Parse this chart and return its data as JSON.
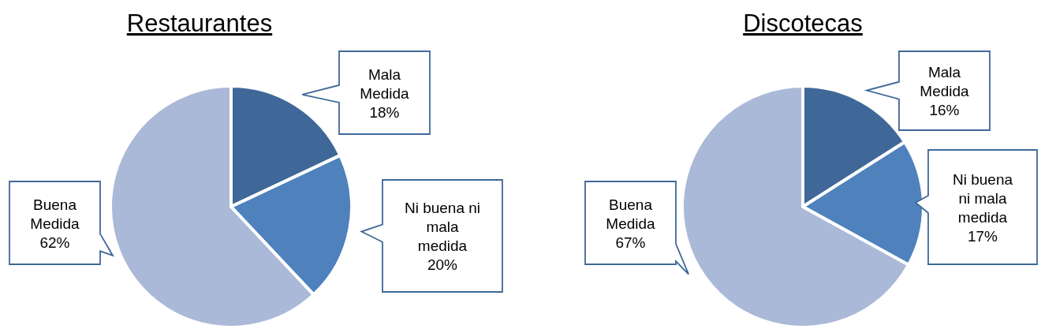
{
  "chart_data": [
    {
      "type": "pie",
      "title": "Restaurantes",
      "categories": [
        "Mala Medida",
        "Ni buena ni mala medida",
        "Buena Medida"
      ],
      "values": [
        18,
        20,
        62
      ],
      "colors": [
        "#3f6899",
        "#4f81bd",
        "#aab9d8"
      ],
      "value_labels": [
        "18%",
        "20%",
        "62%"
      ]
    },
    {
      "type": "pie",
      "title": "Discotecas",
      "categories": [
        "Mala Medida",
        "Ni buena ni mala medida",
        "Buena Medida"
      ],
      "values": [
        16,
        17,
        67
      ],
      "colors": [
        "#3f6899",
        "#4f81bd",
        "#aab9d8"
      ],
      "value_labels": [
        "16%",
        "17%",
        "67%"
      ]
    }
  ]
}
